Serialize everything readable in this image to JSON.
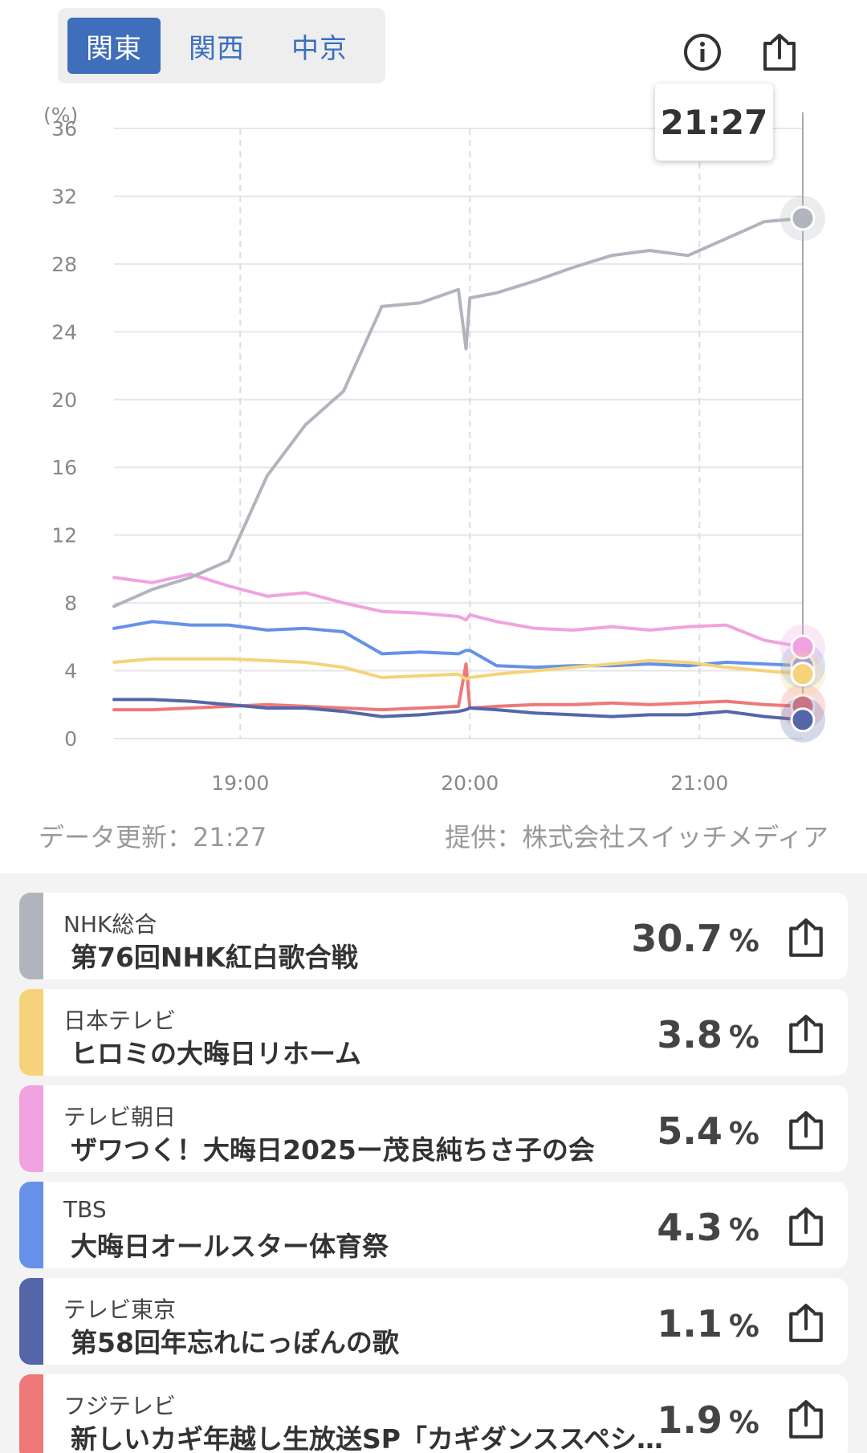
{
  "regions": [
    {
      "label": "関東",
      "active": true
    },
    {
      "label": "関西",
      "active": false
    },
    {
      "label": "中京",
      "active": false
    }
  ],
  "toolbar": {
    "info_icon": "info-icon",
    "share_icon": "share-icon"
  },
  "tooltip": {
    "time": "21:27"
  },
  "chart_data": {
    "type": "line",
    "ylabel": "(%)",
    "ylim": [
      0,
      36
    ],
    "yticks": [
      "0",
      "4",
      "8",
      "12",
      "16",
      "20",
      "24",
      "28",
      "32",
      "36"
    ],
    "xlim": [
      "18:27",
      "21:27"
    ],
    "xticks": [
      "19:00",
      "20:00",
      "21:00"
    ],
    "grid": true,
    "x": [
      "18:27",
      "18:37",
      "18:47",
      "18:57",
      "19:07",
      "19:17",
      "19:27",
      "19:37",
      "19:47",
      "19:57",
      "19:59",
      "20:00",
      "20:07",
      "20:17",
      "20:27",
      "20:37",
      "20:47",
      "20:57",
      "21:07",
      "21:17",
      "21:27"
    ],
    "series": [
      {
        "name": "NHK総合",
        "color": "#b0b5bd",
        "values": [
          7.8,
          8.8,
          9.5,
          10.5,
          15.5,
          18.5,
          20.5,
          25.5,
          25.7,
          26.5,
          23,
          26,
          26.3,
          27,
          27.8,
          28.5,
          28.8,
          28.5,
          29.5,
          30.5,
          30.7
        ]
      },
      {
        "name": "日本テレビ",
        "color": "#f5d37a",
        "values": [
          4.5,
          4.7,
          4.7,
          4.7,
          4.6,
          4.5,
          4.2,
          3.6,
          3.7,
          3.8,
          3.5,
          3.6,
          3.8,
          4.0,
          4.2,
          4.4,
          4.6,
          4.5,
          4.2,
          4.0,
          3.8
        ]
      },
      {
        "name": "テレビ朝日",
        "color": "#f0a3e0",
        "values": [
          9.5,
          9.2,
          9.7,
          9.0,
          8.4,
          8.6,
          8.0,
          7.5,
          7.4,
          7.2,
          7.0,
          7.3,
          6.9,
          6.5,
          6.4,
          6.6,
          6.4,
          6.6,
          6.7,
          5.8,
          5.4
        ]
      },
      {
        "name": "TBS",
        "color": "#6592e8",
        "values": [
          6.5,
          6.9,
          6.7,
          6.7,
          6.4,
          6.5,
          6.3,
          5.0,
          5.1,
          5.0,
          5.2,
          5.2,
          4.3,
          4.2,
          4.3,
          4.3,
          4.4,
          4.3,
          4.5,
          4.4,
          4.3
        ]
      },
      {
        "name": "テレビ東京",
        "color": "#5566a8",
        "values": [
          2.3,
          2.3,
          2.2,
          2.0,
          1.8,
          1.8,
          1.6,
          1.3,
          1.4,
          1.6,
          1.7,
          1.8,
          1.7,
          1.5,
          1.4,
          1.3,
          1.4,
          1.4,
          1.6,
          1.3,
          1.1
        ]
      },
      {
        "name": "フジテレビ",
        "color": "#ee7878",
        "values": [
          1.7,
          1.7,
          1.8,
          1.9,
          2.0,
          1.9,
          1.8,
          1.7,
          1.8,
          1.9,
          4.4,
          1.8,
          1.9,
          2.0,
          2.0,
          2.1,
          2.0,
          2.1,
          2.2,
          2.0,
          1.9
        ]
      }
    ]
  },
  "footer": {
    "updated": "データ更新：21:27",
    "source": "提供：株式会社スイッチメディア"
  },
  "channels": [
    {
      "channel": "NHK総合",
      "program": "第76回NHK紅白歌合戦",
      "value": "30.7",
      "unit": "%",
      "color": "#b0b5bd"
    },
    {
      "channel": "日本テレビ",
      "program": "ヒロミの大晦日リホーム",
      "value": "3.8",
      "unit": "%",
      "color": "#f5d37a"
    },
    {
      "channel": "テレビ朝日",
      "program": "ザワつく！大晦日2025ー茂良純ちさ子の会",
      "value": "5.4",
      "unit": "%",
      "color": "#f0a3e0"
    },
    {
      "channel": "TBS",
      "program": "大晦日オールスター体育祭",
      "value": "4.3",
      "unit": "%",
      "color": "#6592e8"
    },
    {
      "channel": "テレビ東京",
      "program": "第58回年忘れにっぽんの歌",
      "value": "1.1",
      "unit": "%",
      "color": "#5566a8"
    },
    {
      "channel": "フジテレビ",
      "program": "新しいカギ年越し生放送SP「カギダンススペシャル」",
      "value": "1.9",
      "unit": "%",
      "color": "#ee7878"
    }
  ]
}
